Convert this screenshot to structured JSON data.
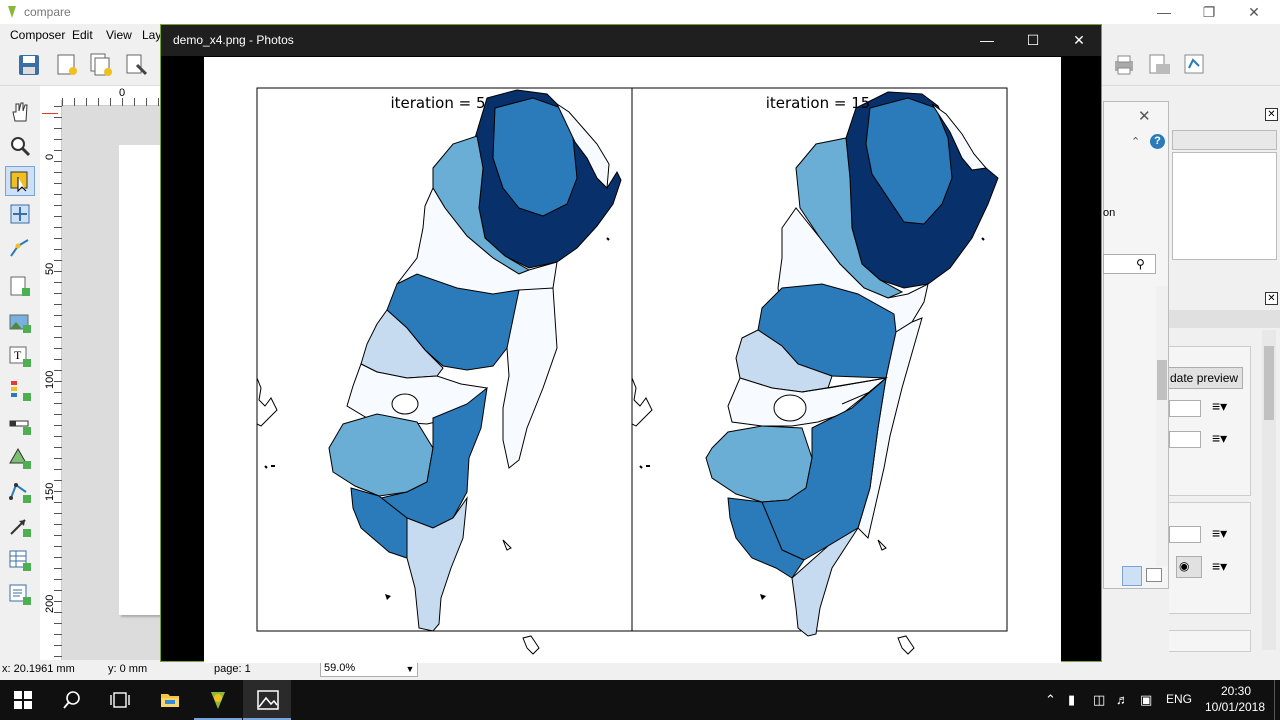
{
  "app": {
    "title": "compare",
    "menu": [
      "Composer",
      "Edit",
      "View",
      "Lay"
    ]
  },
  "ruler": {
    "h_ticks": [
      "0"
    ],
    "v_ticks": [
      "0",
      "50",
      "100",
      "150",
      "200"
    ]
  },
  "photos": {
    "title": "demo_x4.png - Photos",
    "panels": [
      {
        "label": "iteration = 5"
      },
      {
        "label": "iteration = 15"
      }
    ],
    "colors": {
      "dark": "#08306b",
      "mid": "#2b7bba",
      "light": "#6aadd5",
      "pale": "#c6dbef",
      "white": "#f7fbff"
    }
  },
  "right_panel": {
    "partial_label": "on",
    "update_preview": "date preview"
  },
  "status": {
    "x": "x: 20.1961 mm",
    "y": "y: 0 mm",
    "page": "page: 1",
    "zoom": "59.0%"
  },
  "taskbar": {
    "lang": "ENG",
    "time": "20:30",
    "date": "10/01/2018"
  }
}
